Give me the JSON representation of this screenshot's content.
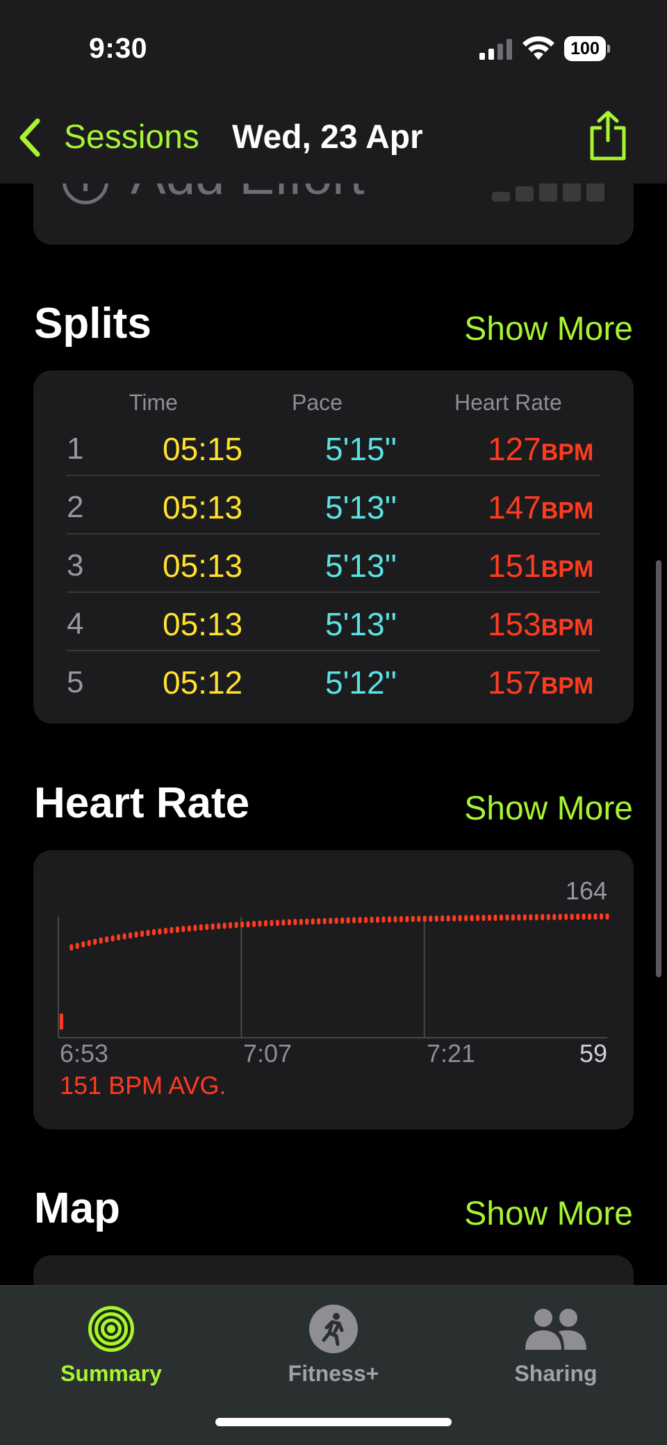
{
  "status_bar": {
    "time": "9:30",
    "battery": "100"
  },
  "nav": {
    "back_label": "Sessions",
    "title": "Wed, 23 Apr"
  },
  "effort": {
    "label": "Add Effort"
  },
  "splits": {
    "title": "Splits",
    "show_more": "Show More",
    "columns": {
      "time": "Time",
      "pace": "Pace",
      "heart_rate": "Heart Rate"
    },
    "rows": [
      {
        "index": "1",
        "time": "05:15",
        "pace": "5'15''",
        "hr": "127",
        "unit": "BPM"
      },
      {
        "index": "2",
        "time": "05:13",
        "pace": "5'13''",
        "hr": "147",
        "unit": "BPM"
      },
      {
        "index": "3",
        "time": "05:13",
        "pace": "5'13''",
        "hr": "151",
        "unit": "BPM"
      },
      {
        "index": "4",
        "time": "05:13",
        "pace": "5'13''",
        "hr": "153",
        "unit": "BPM"
      },
      {
        "index": "5",
        "time": "05:12",
        "pace": "5'12''",
        "hr": "157",
        "unit": "BPM"
      }
    ]
  },
  "heart_rate": {
    "title": "Heart Rate",
    "show_more": "Show More",
    "max_label": "164",
    "min_label": "59",
    "avg_label": "151 BPM AVG.",
    "x_ticks": [
      "6:53",
      "7:07",
      "7:21"
    ],
    "accent": "#ff3b1f"
  },
  "chart_data": {
    "type": "scatter",
    "x_unit": "minutes since 6:53",
    "ylim": [
      59,
      164
    ],
    "x_range": [
      0,
      42
    ],
    "x_ticks": [
      "6:53",
      "7:07",
      "7:21"
    ],
    "annotations": [
      "164",
      "59",
      "151 BPM AVG."
    ]
  },
  "map": {
    "title": "Map",
    "show_more": "Show More"
  },
  "tabs": [
    {
      "label": "Summary",
      "icon": "activity-rings-icon",
      "active": true
    },
    {
      "label": "Fitness+",
      "icon": "running-figure-icon",
      "active": false
    },
    {
      "label": "Sharing",
      "icon": "people-icon",
      "active": false
    }
  ],
  "colors": {
    "accent": "#a7f432",
    "time": "#ffe12e",
    "pace": "#59e3e3",
    "hr": "#ff3b1f"
  }
}
